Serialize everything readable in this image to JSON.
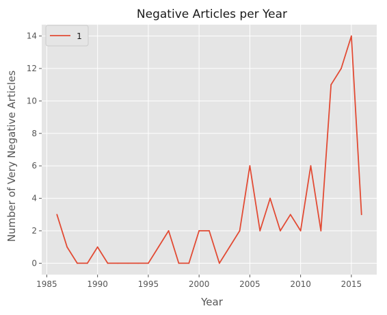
{
  "chart_data": {
    "type": "line",
    "title": "Negative Articles per Year",
    "xlabel": "Year",
    "ylabel": "Number of Very Negative Articles",
    "xlim": [
      1984.5,
      2017.5
    ],
    "ylim": [
      -0.7,
      14.7
    ],
    "xticks": [
      1985,
      1990,
      1995,
      2000,
      2005,
      2010,
      2015
    ],
    "yticks": [
      0,
      2,
      4,
      6,
      8,
      10,
      12,
      14
    ],
    "grid": true,
    "legend": "upper left",
    "series": [
      {
        "name": "1",
        "color": "#E24A33",
        "x": [
          1986,
          1987,
          1988,
          1989,
          1990,
          1991,
          1992,
          1993,
          1994,
          1995,
          1996,
          1997,
          1998,
          1999,
          2000,
          2001,
          2002,
          2003,
          2004,
          2005,
          2006,
          2007,
          2008,
          2009,
          2010,
          2011,
          2012,
          2013,
          2014,
          2015,
          2016
        ],
        "y": [
          3,
          1,
          0,
          0,
          1,
          0,
          0,
          0,
          0,
          0,
          1,
          2,
          0,
          0,
          2,
          2,
          0,
          1,
          2,
          6,
          2,
          4,
          2,
          3,
          2,
          6,
          2,
          11,
          12,
          14,
          3
        ]
      }
    ]
  },
  "style": {
    "plot_background": "#E5E5E5",
    "grid_color": "#FFFFFF"
  }
}
